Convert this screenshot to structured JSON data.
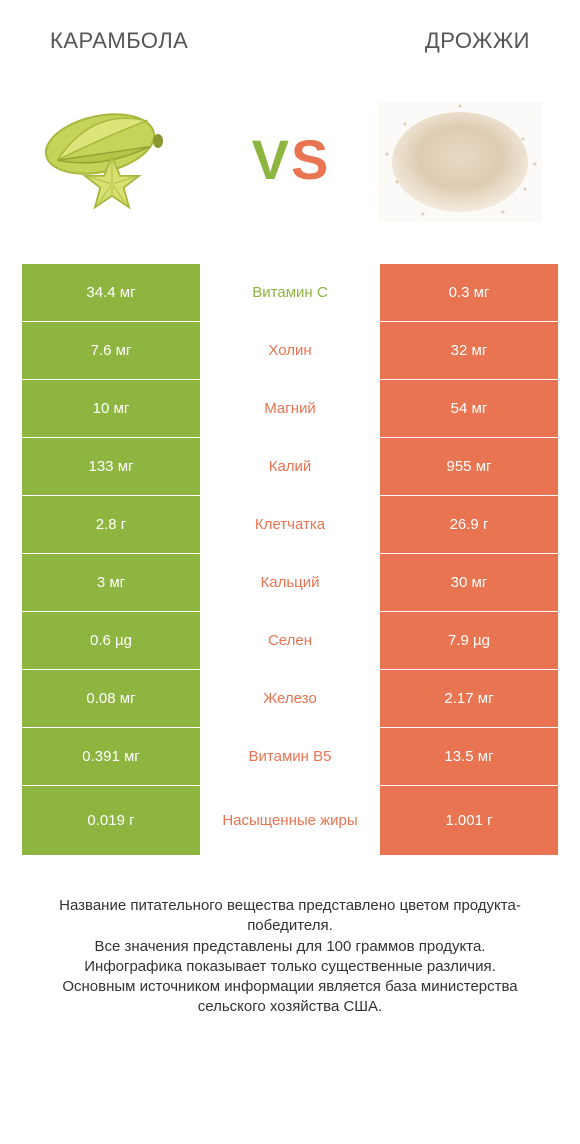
{
  "colors": {
    "green": "#8eb540",
    "orange": "#e97451",
    "green_text": "#8eb540",
    "orange_text": "#e97451"
  },
  "header": {
    "left": "КАРАМБОЛА",
    "right": "ДРОЖЖИ"
  },
  "vs": {
    "v": "V",
    "s": "S"
  },
  "rows": [
    {
      "left": "34.4 мг",
      "mid": "Витамин C",
      "right": "0.3 мг",
      "winner": "left"
    },
    {
      "left": "7.6 мг",
      "mid": "Холин",
      "right": "32 мг",
      "winner": "right"
    },
    {
      "left": "10 мг",
      "mid": "Магний",
      "right": "54 мг",
      "winner": "right"
    },
    {
      "left": "133 мг",
      "mid": "Калий",
      "right": "955 мг",
      "winner": "right"
    },
    {
      "left": "2.8 г",
      "mid": "Клетчатка",
      "right": "26.9 г",
      "winner": "right"
    },
    {
      "left": "3 мг",
      "mid": "Кальций",
      "right": "30 мг",
      "winner": "right"
    },
    {
      "left": "0.6 µg",
      "mid": "Селен",
      "right": "7.9 µg",
      "winner": "right"
    },
    {
      "left": "0.08 мг",
      "mid": "Железо",
      "right": "2.17 мг",
      "winner": "right"
    },
    {
      "left": "0.391 мг",
      "mid": "Витамин B5",
      "right": "13.5 мг",
      "winner": "right"
    },
    {
      "left": "0.019 г",
      "mid": "Насыщенные жиры",
      "right": "1.001 г",
      "winner": "right"
    }
  ],
  "footer": [
    "Название питательного вещества представлено цветом продукта-победителя.",
    "Все значения представлены для 100 граммов продукта.",
    "Инфографика показывает только существенные различия.",
    "Основным источником информации является база министерства сельского хозяйства США."
  ]
}
